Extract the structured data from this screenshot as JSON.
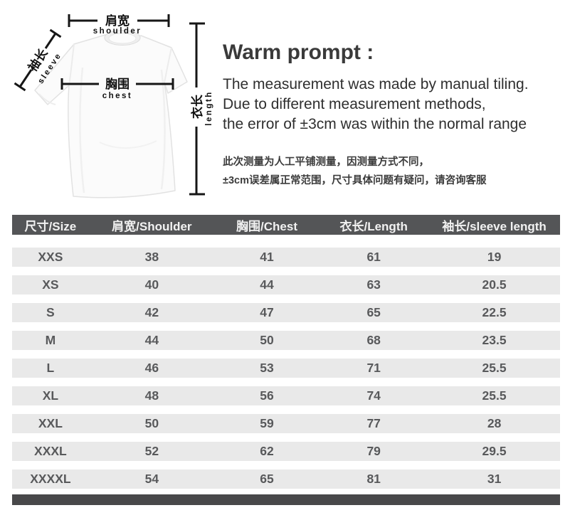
{
  "diagram": {
    "shoulder_zh": "肩宽",
    "shoulder_en": "shoulder",
    "sleeve_zh": "袖长",
    "sleeve_en": "sleeve",
    "chest_zh": "胸围",
    "chest_en": "chest",
    "length_zh": "衣长",
    "length_en": "length"
  },
  "warm_prompt": {
    "title": "Warm prompt :",
    "lines": [
      "The measurement was made by manual tiling.",
      "Due to different measurement methods,",
      "the error of ±3cm was within the normal range"
    ],
    "lines_zh": [
      "此次测量为人工平铺测量，因测量方式不同，",
      "±3cm误差属正常范围，尺寸具体问题有疑问，请咨询客服"
    ]
  },
  "size_table": {
    "headers": [
      "尺寸/Size",
      "肩宽/Shoulder",
      "胸围/Chest",
      "衣长/Length",
      "袖长/sleeve length"
    ],
    "rows": [
      [
        "XXS",
        "38",
        "41",
        "61",
        "19"
      ],
      [
        "XS",
        "40",
        "44",
        "63",
        "20.5"
      ],
      [
        "S",
        "42",
        "47",
        "65",
        "22.5"
      ],
      [
        "M",
        "44",
        "50",
        "68",
        "23.5"
      ],
      [
        "L",
        "46",
        "53",
        "71",
        "25.5"
      ],
      [
        "XL",
        "48",
        "56",
        "74",
        "25.5"
      ],
      [
        "XXL",
        "50",
        "59",
        "77",
        "28"
      ],
      [
        "XXXL",
        "52",
        "62",
        "79",
        "29.5"
      ],
      [
        "XXXXL",
        "54",
        "65",
        "81",
        "31"
      ]
    ]
  },
  "chart_data": {
    "type": "table",
    "columns": [
      "尺寸/Size",
      "肩宽/Shoulder",
      "胸围/Chest",
      "衣长/Length",
      "袖长/sleeve length"
    ],
    "rows": [
      [
        "XXS",
        38,
        41,
        61,
        19
      ],
      [
        "XS",
        40,
        44,
        63,
        20.5
      ],
      [
        "S",
        42,
        47,
        65,
        22.5
      ],
      [
        "M",
        44,
        50,
        68,
        23.5
      ],
      [
        "L",
        46,
        53,
        71,
        25.5
      ],
      [
        "XL",
        48,
        56,
        74,
        25.5
      ],
      [
        "XXL",
        50,
        59,
        77,
        28
      ],
      [
        "XXXL",
        52,
        62,
        79,
        29.5
      ],
      [
        "XXXXL",
        54,
        65,
        81,
        31
      ]
    ]
  },
  "colors": {
    "table_header_bg": "#545557",
    "table_row_bg": "#e9e9e9",
    "table_footer_bg": "#48484a",
    "table_text": "#58595b",
    "header_text": "#f2f2f2",
    "annotation": "#161616"
  }
}
